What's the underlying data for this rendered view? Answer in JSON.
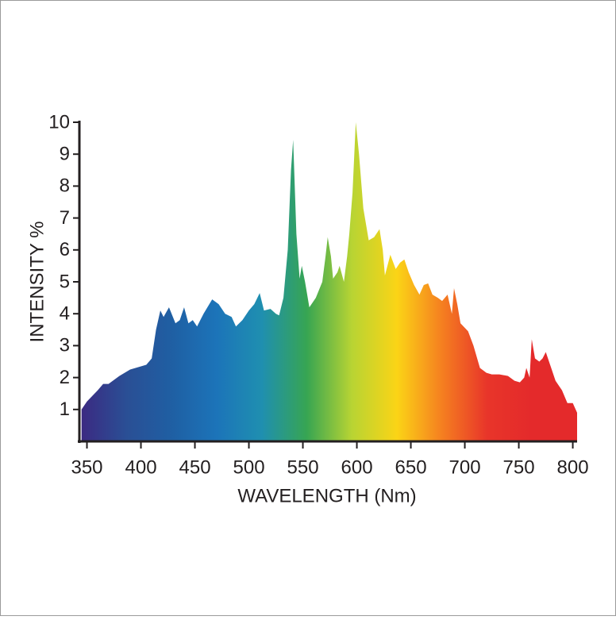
{
  "chart_data": {
    "type": "area",
    "x_label": "WAVELENGTH (Nm)",
    "y_label": "INTENSITY %",
    "x": [
      345,
      350,
      360,
      365,
      370,
      380,
      390,
      400,
      405,
      410,
      414,
      418,
      421,
      426,
      432,
      436,
      440,
      444,
      448,
      452,
      458,
      466,
      472,
      478,
      484,
      488,
      494,
      500,
      505,
      510,
      514,
      520,
      525,
      528,
      532,
      536,
      539,
      541,
      544,
      547,
      549,
      552,
      556,
      562,
      568,
      571,
      573,
      576,
      578,
      582,
      584,
      588,
      591,
      593,
      596,
      599,
      602,
      606,
      611,
      616,
      621,
      624,
      626,
      631,
      636,
      640,
      644,
      648,
      653,
      658,
      662,
      666,
      670,
      675,
      679,
      684,
      688,
      690,
      693,
      696,
      703,
      708,
      714,
      720,
      725,
      732,
      740,
      746,
      751,
      755,
      757,
      760,
      762,
      765,
      769,
      772,
      775,
      780,
      784,
      790,
      795,
      800,
      804
    ],
    "values": [
      1.0,
      1.25,
      1.6,
      1.8,
      1.8,
      2.05,
      2.25,
      2.35,
      2.4,
      2.6,
      3.5,
      4.1,
      3.9,
      4.2,
      3.7,
      3.8,
      4.2,
      3.7,
      3.8,
      3.6,
      4.0,
      4.45,
      4.3,
      4.0,
      3.9,
      3.6,
      3.8,
      4.1,
      4.3,
      4.65,
      4.1,
      4.15,
      4.0,
      3.95,
      4.5,
      6.0,
      8.5,
      9.45,
      6.5,
      5.1,
      5.5,
      5.0,
      4.2,
      4.5,
      5.0,
      5.8,
      6.4,
      5.8,
      5.1,
      5.3,
      5.5,
      5.0,
      5.8,
      6.5,
      7.8,
      10.0,
      9.0,
      7.3,
      6.3,
      6.4,
      6.65,
      6.0,
      5.2,
      5.85,
      5.4,
      5.6,
      5.7,
      5.3,
      4.9,
      4.6,
      4.9,
      4.95,
      4.6,
      4.5,
      4.4,
      4.6,
      4.0,
      4.8,
      4.3,
      3.7,
      3.45,
      3.0,
      2.3,
      2.15,
      2.1,
      2.1,
      2.05,
      1.9,
      1.85,
      2.0,
      2.3,
      2.0,
      3.2,
      2.6,
      2.5,
      2.6,
      2.8,
      2.3,
      1.9,
      1.6,
      1.2,
      1.2,
      0.9
    ],
    "gradient_colors": [
      "#3b2a82",
      "#2a4f95",
      "#1f5fa3",
      "#1c74b9",
      "#1f8fb0",
      "#37a552",
      "#b8d433",
      "#fbd416",
      "#f57f20",
      "#e8352a",
      "#e42a2b",
      "#e42a2b"
    ],
    "xlim": [
      343,
      804
    ],
    "ylim": [
      0,
      10
    ],
    "xticks": [
      350,
      400,
      450,
      500,
      550,
      600,
      650,
      700,
      750,
      800
    ],
    "yticks": [
      1,
      2,
      3,
      4,
      5,
      6,
      7,
      8,
      9,
      10
    ]
  }
}
